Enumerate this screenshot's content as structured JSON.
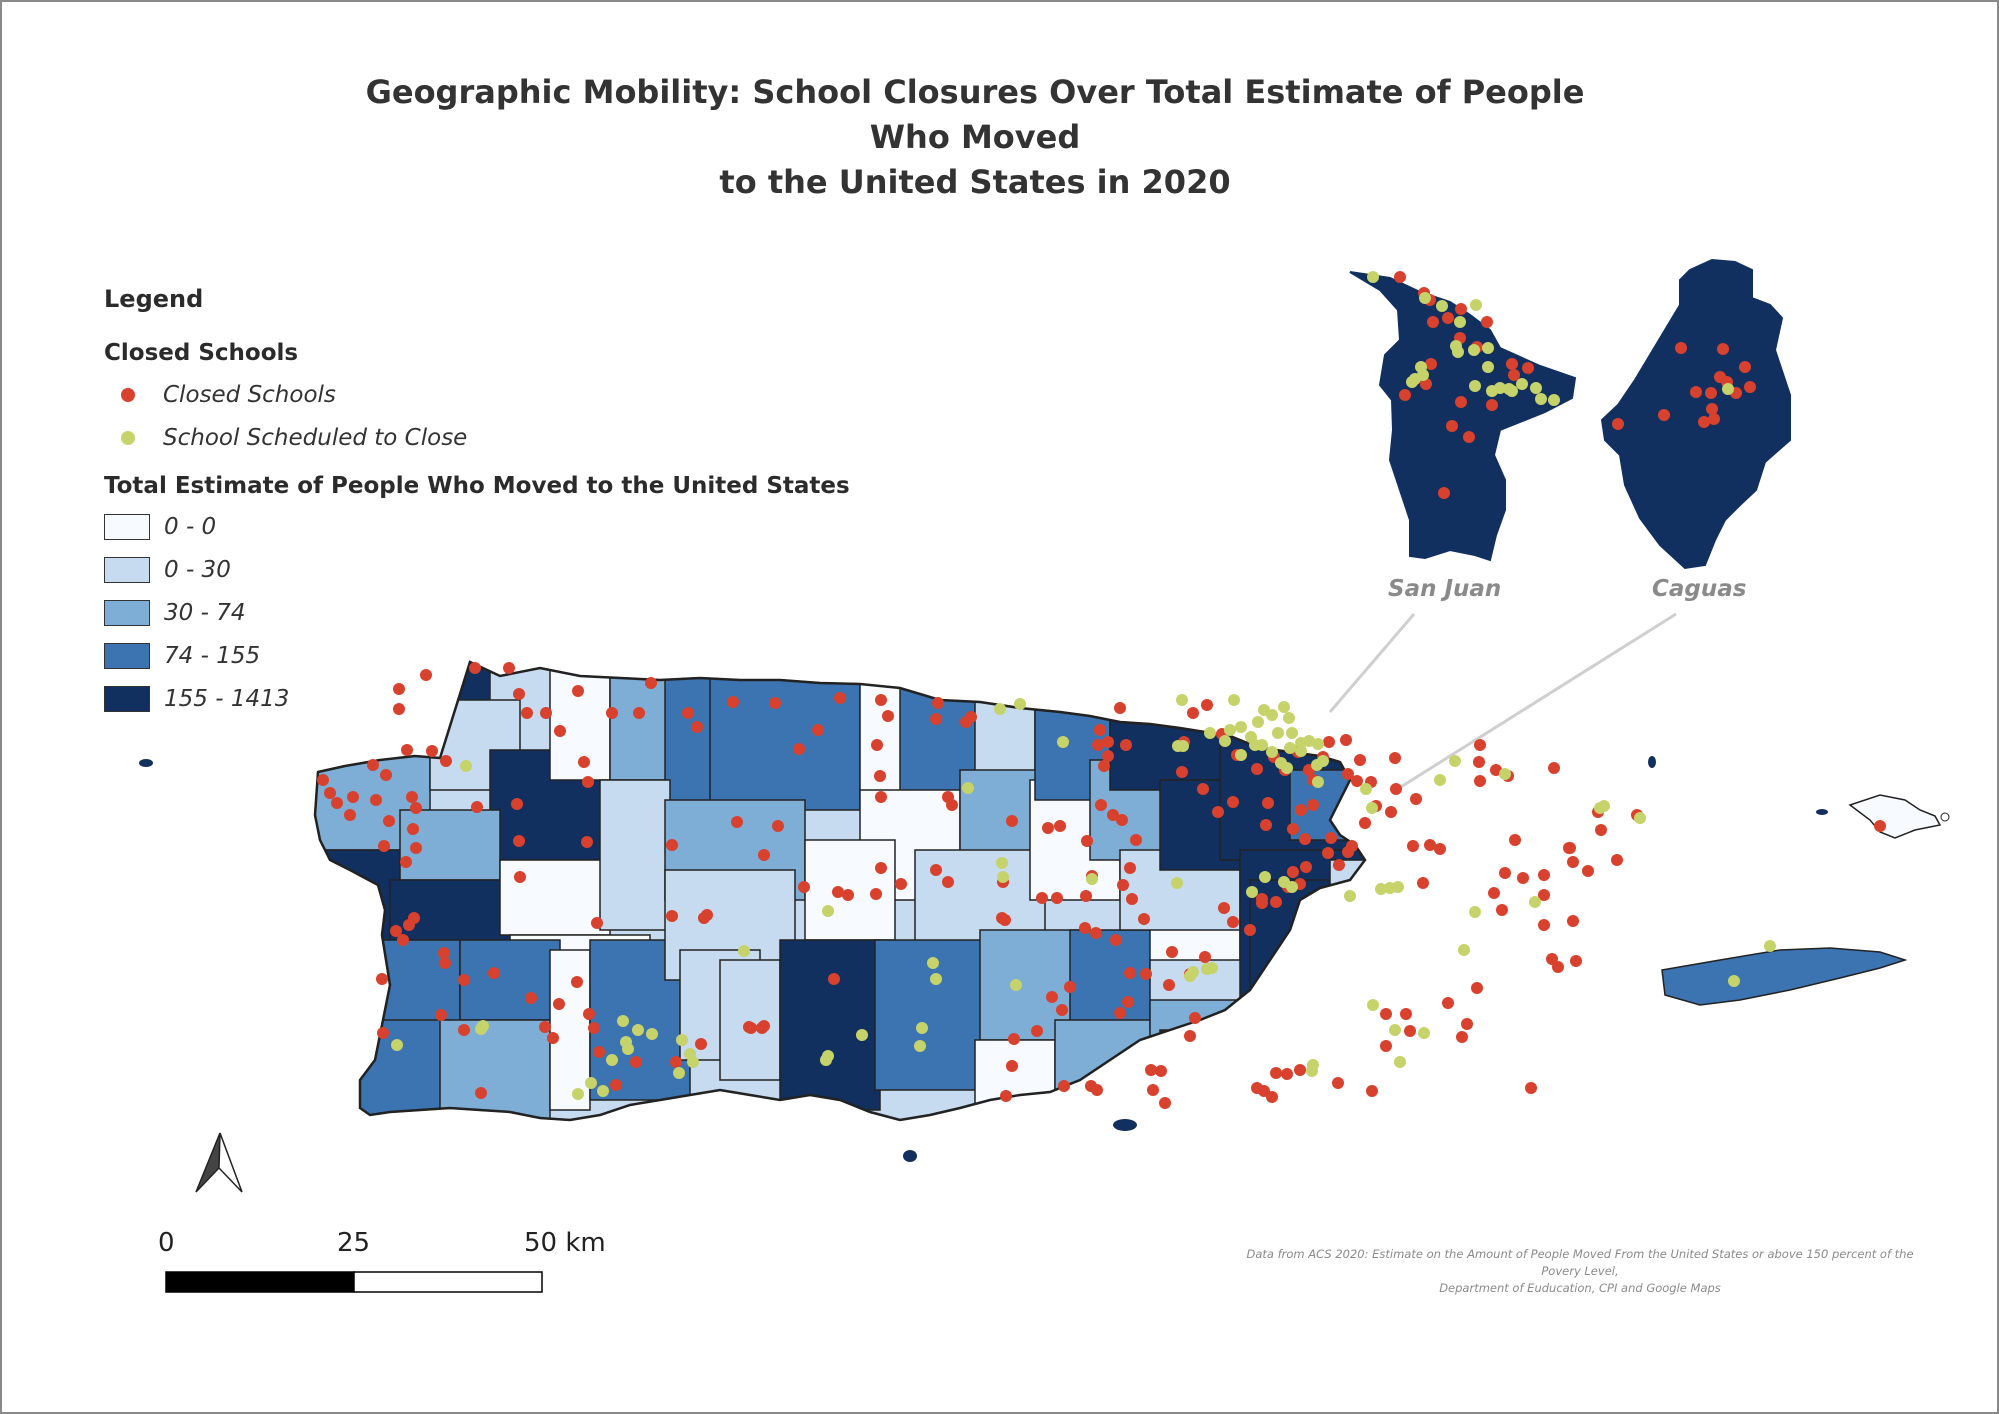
{
  "title": {
    "line1": "Geographic Mobility: School Closures Over Total Estimate of People Who Moved",
    "line2": "to the United States in 2020"
  },
  "legend": {
    "heading": "Legend",
    "points_heading": "Closed Schools",
    "points": [
      {
        "label": "Closed Schools",
        "color": "#d8412e"
      },
      {
        "label": "School Scheduled to Close",
        "color": "#c6d36a"
      }
    ],
    "choropleth_heading": "Total Estimate of People Who Moved to the United States",
    "classes": [
      {
        "label": "0 - 0",
        "color": "#f7fbff"
      },
      {
        "label": "0 - 30",
        "color": "#c6dbef"
      },
      {
        "label": "30 - 74",
        "color": "#7eadd6"
      },
      {
        "label": "74 - 155",
        "color": "#3b74b1"
      },
      {
        "label": "155 - 1413",
        "color": "#12305f"
      }
    ]
  },
  "insets": [
    {
      "label": "San Juan"
    },
    {
      "label": "Caguas"
    }
  ],
  "scale_bar": {
    "labels": [
      "0",
      "25",
      "50 km"
    ]
  },
  "north_arrow": "north-arrow-icon",
  "source_note": {
    "line1": "Data from ACS 2020: Estimate on the Amount of People Moved From the United States or above 150 percent of the Povery Level,",
    "line2": "Department of Euducation, CPI and Google Maps"
  }
}
